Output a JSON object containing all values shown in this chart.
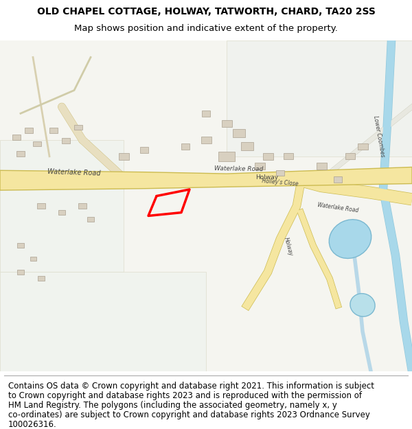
{
  "title_line1": "OLD CHAPEL COTTAGE, HOLWAY, TATWORTH, CHARD, TA20 2SS",
  "title_line2": "Map shows position and indicative extent of the property.",
  "footer_lines": [
    "Contains OS data © Crown copyright and database right 2021. This information is subject",
    "to Crown copyright and database rights 2023 and is reproduced with the permission of",
    "HM Land Registry. The polygons (including the associated geometry, namely x, y",
    "co-ordinates) are subject to Crown copyright and database rights 2023 Ordnance Survey",
    "100026316."
  ],
  "title_fontsize": 10,
  "footer_fontsize": 8.5,
  "road_yellow": "#f5e6a0",
  "road_outline": "#ccbb50",
  "plot_polygon_color": "#ff0000",
  "water_color": "#a8d8ea",
  "background_color": "#ffffff"
}
